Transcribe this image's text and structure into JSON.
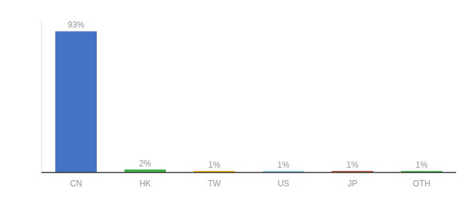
{
  "chart_data": {
    "type": "bar",
    "categories": [
      "CN",
      "HK",
      "TW",
      "US",
      "JP",
      "OTH"
    ],
    "values": [
      93,
      2,
      1,
      1,
      1,
      1
    ],
    "value_labels": [
      "93%",
      "2%",
      "1%",
      "1%",
      "1%",
      "1%"
    ],
    "colors": [
      "#4472C4",
      "#3CB043",
      "#FFA500",
      "#87CEEB",
      "#C0452A",
      "#3CB043"
    ],
    "ylim": [
      0,
      100
    ],
    "data_labels": true,
    "tick_labels": "x"
  }
}
